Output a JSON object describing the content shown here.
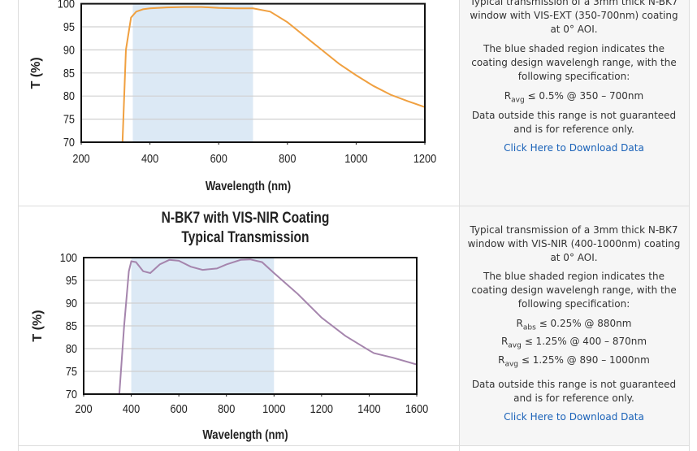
{
  "chart_data": [
    {
      "type": "line",
      "x_label": "Wavelength (nm)",
      "y_label": "T (%)",
      "xlim": [
        200,
        1200
      ],
      "xticks": [
        200,
        400,
        600,
        800,
        1000,
        1200
      ],
      "ylim": [
        70,
        100
      ],
      "yticks": [
        70,
        75,
        80,
        85,
        90,
        95,
        100
      ],
      "grid": true,
      "shade": [
        350,
        700
      ],
      "shade_color": "#dce9f5",
      "series": [
        {
          "color": "#f0a040",
          "x": [
            320,
            330,
            345,
            360,
            380,
            400,
            450,
            500,
            550,
            600,
            650,
            700,
            750,
            800,
            850,
            900,
            950,
            1000,
            1050,
            1100,
            1150,
            1200
          ],
          "values": [
            70,
            90,
            97,
            98.3,
            98.8,
            99,
            99.2,
            99.3,
            99.3,
            99.1,
            99,
            99,
            98.3,
            96,
            93,
            90,
            87,
            84.5,
            82.2,
            80.3,
            78.9,
            77.6
          ]
        }
      ]
    },
    {
      "type": "line",
      "title": [
        "N-BK7 with VIS-NIR Coating",
        "Typical Transmission"
      ],
      "x_label": "Wavelength (nm)",
      "y_label": "T (%)",
      "xlim": [
        200,
        1600
      ],
      "xticks": [
        200,
        400,
        600,
        800,
        1000,
        1200,
        1400,
        1600
      ],
      "ylim": [
        70,
        100
      ],
      "yticks": [
        70,
        75,
        80,
        85,
        90,
        95,
        100
      ],
      "grid": true,
      "shade": [
        400,
        1000
      ],
      "shade_color": "#dce9f5",
      "series": [
        {
          "color": "#a585ad",
          "x": [
            350,
            370,
            390,
            400,
            420,
            450,
            480,
            520,
            560,
            600,
            650,
            700,
            760,
            800,
            860,
            900,
            950,
            1000,
            1050,
            1100,
            1200,
            1300,
            1400,
            1420,
            1500,
            1600
          ],
          "values": [
            70,
            85,
            97,
            99.2,
            99,
            97,
            96.6,
            98.5,
            99.5,
            99.3,
            98,
            97.3,
            97.6,
            98.5,
            99.5,
            99.6,
            99,
            96.6,
            94.3,
            92,
            86.8,
            82.8,
            79.6,
            79,
            78,
            76.5
          ]
        }
      ]
    }
  ],
  "panels": [
    {
      "description": "Typical transmission of a 3mm thick N-BK7 window with VIS-EXT (350-700nm) coating at 0° AOI.",
      "shade_note": "The blue shaded region indicates the coating design wavelengh range, with the following specification:",
      "specs": [
        {
          "symbol": "R",
          "sub": "avg",
          "text": "≤ 0.5% @ 350 – 700nm"
        }
      ],
      "note": "Data outside this range is not guaranteed and is for reference only.",
      "link": "Click Here to Download Data"
    },
    {
      "description": "Typical transmission of a 3mm thick N-BK7 window with VIS-NIR (400-1000nm) coating at 0° AOI.",
      "shade_note": "The blue shaded region indicates the coating design wavelengh range, with the following specification:",
      "specs": [
        {
          "symbol": "R",
          "sub": "abs",
          "text": "≤ 0.25% @ 880nm"
        },
        {
          "symbol": "R",
          "sub": "avg",
          "text": "≤ 1.25% @ 400 – 870nm"
        },
        {
          "symbol": "R",
          "sub": "avg",
          "text": "≤ 1.25% @ 890 – 1000nm"
        }
      ],
      "note": "Data outside this range is not guaranteed and is for reference only.",
      "link": "Click Here to Download Data"
    }
  ]
}
